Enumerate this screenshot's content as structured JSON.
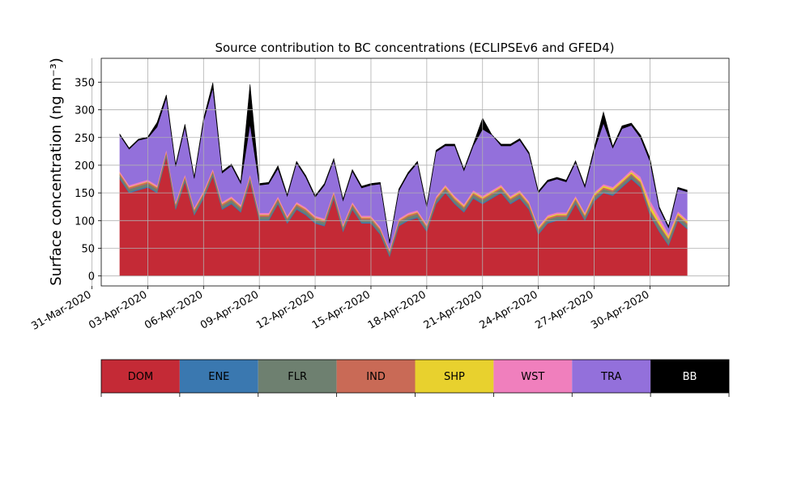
{
  "chart_data": {
    "type": "area",
    "stacked": true,
    "title": "Source contribution to BC concentrations (ECLIPSEv6 and GFED4)",
    "ylabel": "Surface concentration (ng m⁻³)",
    "xlabel": "",
    "ylim": [
      -18,
      393
    ],
    "xlim": [
      "2020-03-31T12:00",
      "2020-05-04T06:00"
    ],
    "grid": true,
    "x_ticks": [
      "31-Mar-2020",
      "03-Apr-2020",
      "06-Apr-2020",
      "09-Apr-2020",
      "12-Apr-2020",
      "15-Apr-2020",
      "18-Apr-2020",
      "21-Apr-2020",
      "24-Apr-2020",
      "27-Apr-2020",
      "30-Apr-2020"
    ],
    "x_tick_dates": [
      "2020-03-31",
      "2020-04-03",
      "2020-04-06",
      "2020-04-09",
      "2020-04-12",
      "2020-04-15",
      "2020-04-18",
      "2020-04-21",
      "2020-04-24",
      "2020-04-27",
      "2020-04-30"
    ],
    "y_ticks": [
      0,
      50,
      100,
      150,
      200,
      250,
      300,
      350
    ],
    "x": [
      "2020-04-01T12:00",
      "2020-04-02T00:00",
      "2020-04-02T12:00",
      "2020-04-03T00:00",
      "2020-04-03T12:00",
      "2020-04-04T00:00",
      "2020-04-04T12:00",
      "2020-04-05T00:00",
      "2020-04-05T12:00",
      "2020-04-06T00:00",
      "2020-04-06T12:00",
      "2020-04-07T00:00",
      "2020-04-07T12:00",
      "2020-04-08T00:00",
      "2020-04-08T12:00",
      "2020-04-09T00:00",
      "2020-04-09T12:00",
      "2020-04-10T00:00",
      "2020-04-10T12:00",
      "2020-04-11T00:00",
      "2020-04-11T12:00",
      "2020-04-12T00:00",
      "2020-04-12T12:00",
      "2020-04-13T00:00",
      "2020-04-13T12:00",
      "2020-04-14T00:00",
      "2020-04-14T12:00",
      "2020-04-15T00:00",
      "2020-04-15T12:00",
      "2020-04-16T00:00",
      "2020-04-16T12:00",
      "2020-04-17T00:00",
      "2020-04-17T12:00",
      "2020-04-18T00:00",
      "2020-04-18T12:00",
      "2020-04-19T00:00",
      "2020-04-19T12:00",
      "2020-04-20T00:00",
      "2020-04-20T12:00",
      "2020-04-21T00:00",
      "2020-04-21T12:00",
      "2020-04-22T00:00",
      "2020-04-22T12:00",
      "2020-04-23T00:00",
      "2020-04-23T12:00",
      "2020-04-24T00:00",
      "2020-04-24T12:00",
      "2020-04-25T00:00",
      "2020-04-25T12:00",
      "2020-04-26T00:00",
      "2020-04-26T12:00",
      "2020-04-27T00:00",
      "2020-04-27T12:00",
      "2020-04-28T00:00",
      "2020-04-28T12:00",
      "2020-04-29T00:00",
      "2020-04-29T12:00",
      "2020-04-30T00:00",
      "2020-04-30T12:00",
      "2020-05-01T00:00",
      "2020-05-01T12:00",
      "2020-05-02T00:00"
    ],
    "series": [
      {
        "name": "DOM",
        "color": "#c42a36",
        "values": [
          175,
          150,
          155,
          160,
          150,
          215,
          120,
          170,
          110,
          140,
          180,
          120,
          130,
          115,
          170,
          100,
          100,
          130,
          95,
          120,
          110,
          95,
          90,
          140,
          80,
          120,
          95,
          95,
          75,
          35,
          90,
          100,
          105,
          80,
          130,
          150,
          130,
          115,
          140,
          130,
          140,
          150,
          130,
          140,
          120,
          75,
          95,
          100,
          100,
          130,
          100,
          135,
          150,
          145,
          160,
          175,
          160,
          110,
          80,
          55,
          100,
          85
        ]
      },
      {
        "name": "ENE",
        "color": "#3a78b0",
        "values": [
          2,
          2,
          2,
          2,
          2,
          2,
          2,
          2,
          2,
          2,
          2,
          2,
          2,
          2,
          2,
          2,
          2,
          2,
          2,
          2,
          2,
          2,
          2,
          2,
          2,
          2,
          2,
          2,
          2,
          2,
          2,
          2,
          2,
          2,
          2,
          2,
          2,
          2,
          2,
          2,
          2,
          2,
          2,
          2,
          2,
          2,
          2,
          2,
          2,
          2,
          2,
          2,
          2,
          2,
          2,
          2,
          2,
          2,
          2,
          2,
          2,
          2
        ]
      },
      {
        "name": "FLR",
        "color": "#6e8070",
        "values": [
          5,
          5,
          5,
          5,
          5,
          5,
          5,
          5,
          5,
          5,
          5,
          5,
          5,
          5,
          5,
          5,
          5,
          5,
          5,
          5,
          5,
          5,
          5,
          5,
          5,
          5,
          5,
          5,
          5,
          5,
          5,
          5,
          5,
          5,
          5,
          5,
          5,
          5,
          5,
          5,
          5,
          5,
          5,
          5,
          5,
          5,
          5,
          5,
          5,
          5,
          5,
          5,
          5,
          5,
          5,
          5,
          5,
          6,
          8,
          8,
          6,
          6
        ]
      },
      {
        "name": "IND",
        "color": "#c96a56",
        "values": [
          3,
          3,
          3,
          3,
          3,
          3,
          3,
          3,
          3,
          3,
          3,
          3,
          3,
          3,
          3,
          3,
          3,
          3,
          3,
          3,
          3,
          3,
          3,
          3,
          3,
          3,
          3,
          3,
          3,
          3,
          3,
          3,
          3,
          3,
          3,
          3,
          3,
          3,
          3,
          3,
          3,
          3,
          3,
          3,
          3,
          3,
          3,
          3,
          3,
          3,
          3,
          3,
          3,
          3,
          3,
          3,
          3,
          3,
          3,
          3,
          3,
          3
        ]
      },
      {
        "name": "SHP",
        "color": "#e8d12e",
        "values": [
          1,
          1,
          1,
          1,
          1,
          1,
          1,
          1,
          1,
          1,
          1,
          1,
          1,
          1,
          1,
          1,
          1,
          1,
          1,
          1,
          1,
          1,
          1,
          1,
          1,
          1,
          1,
          1,
          1,
          1,
          1,
          1,
          1,
          1,
          1,
          2,
          2,
          2,
          2,
          2,
          2,
          2,
          2,
          2,
          2,
          2,
          2,
          2,
          2,
          2,
          2,
          3,
          3,
          3,
          3,
          3,
          4,
          8,
          6,
          4,
          3,
          3
        ]
      },
      {
        "name": "WST",
        "color": "#f07fbd",
        "values": [
          3,
          3,
          3,
          3,
          3,
          3,
          3,
          3,
          3,
          3,
          3,
          3,
          3,
          3,
          3,
          3,
          3,
          3,
          3,
          3,
          3,
          3,
          3,
          3,
          3,
          3,
          3,
          3,
          3,
          3,
          3,
          3,
          3,
          3,
          3,
          3,
          3,
          3,
          3,
          3,
          3,
          3,
          3,
          3,
          3,
          3,
          3,
          3,
          3,
          3,
          3,
          3,
          3,
          3,
          3,
          4,
          5,
          8,
          8,
          5,
          3,
          3
        ]
      },
      {
        "name": "TRA",
        "color": "#9370db",
        "values": [
          65,
          65,
          76,
          75,
          105,
          93,
          64,
          85,
          52,
          125,
          145,
          52,
          55,
          38,
          90,
          50,
          52,
          50,
          35,
          70,
          54,
          33,
          60,
          55,
          42,
          55,
          50,
          55,
          77,
          10,
          50,
          70,
          85,
          30,
          80,
          70,
          90,
          60,
          80,
          120,
          100,
          70,
          90,
          90,
          85,
          60,
          60,
          60,
          55,
          60,
          45,
          75,
          110,
          70,
          90,
          80,
          70,
          70,
          15,
          10,
          40,
          50
        ]
      },
      {
        "name": "BB",
        "color": "#000000",
        "values": [
          2,
          2,
          2,
          2,
          8,
          5,
          3,
          5,
          3,
          5,
          10,
          3,
          3,
          3,
          72,
          3,
          3,
          5,
          3,
          3,
          3,
          3,
          3,
          3,
          3,
          3,
          3,
          3,
          3,
          3,
          3,
          3,
          3,
          3,
          3,
          3,
          3,
          3,
          3,
          20,
          0,
          3,
          3,
          3,
          3,
          3,
          3,
          3,
          3,
          3,
          3,
          5,
          20,
          3,
          5,
          4,
          5,
          6,
          3,
          3,
          3,
          3
        ]
      }
    ],
    "legend": {
      "placement": "bottom",
      "entries": [
        "DOM",
        "ENE",
        "FLR",
        "IND",
        "SHP",
        "WST",
        "TRA",
        "BB"
      ]
    }
  }
}
